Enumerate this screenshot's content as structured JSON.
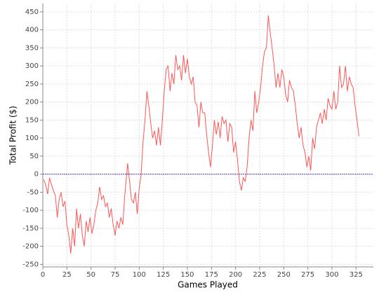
{
  "chart_data": {
    "type": "line",
    "x_label": "Games Played",
    "y_label": "Total Profit ($)",
    "x": [
      1,
      3,
      5,
      7,
      9,
      11,
      13,
      15,
      17,
      19,
      21,
      23,
      25,
      27,
      29,
      31,
      33,
      35,
      37,
      39,
      41,
      43,
      45,
      47,
      49,
      51,
      53,
      55,
      57,
      59,
      61,
      63,
      65,
      67,
      69,
      71,
      73,
      75,
      77,
      79,
      81,
      83,
      85,
      87,
      88,
      90,
      92,
      94,
      96,
      98,
      100,
      102,
      104,
      106,
      108,
      110,
      112,
      114,
      116,
      118,
      120,
      122,
      124,
      126,
      128,
      130,
      132,
      134,
      136,
      138,
      140,
      142,
      144,
      146,
      148,
      150,
      152,
      154,
      156,
      158,
      160,
      162,
      164,
      166,
      168,
      170,
      172,
      174,
      176,
      178,
      180,
      182,
      184,
      186,
      188,
      190,
      192,
      194,
      196,
      198,
      200,
      202,
      204,
      206,
      208,
      210,
      212,
      214,
      216,
      218,
      220,
      222,
      224,
      226,
      228,
      230,
      232,
      234,
      236,
      238,
      240,
      242,
      244,
      246,
      248,
      250,
      252,
      254,
      256,
      258,
      260,
      262,
      264,
      266,
      268,
      270,
      272,
      274,
      276,
      278,
      280,
      282,
      284,
      286,
      288,
      290,
      292,
      294,
      296,
      298,
      300,
      302,
      304,
      306,
      308,
      310,
      312,
      314,
      316,
      318,
      320,
      322,
      324,
      326,
      328
    ],
    "series": [
      {
        "color": "#ff5555",
        "values": [
          -15,
          -30,
          -55,
          -10,
          -30,
          -45,
          -60,
          -120,
          -70,
          -50,
          -90,
          -75,
          -140,
          -170,
          -220,
          -150,
          -200,
          -95,
          -150,
          -110,
          -170,
          -200,
          -130,
          -160,
          -120,
          -165,
          -140,
          -100,
          -80,
          -35,
          -70,
          -60,
          -90,
          -80,
          -120,
          -95,
          -140,
          -170,
          -130,
          -150,
          -120,
          -140,
          -60,
          0,
          30,
          -20,
          -70,
          -80,
          -50,
          -110,
          -40,
          0,
          90,
          150,
          230,
          190,
          140,
          100,
          120,
          80,
          130,
          80,
          150,
          230,
          290,
          300,
          230,
          280,
          250,
          330,
          290,
          300,
          260,
          330,
          280,
          320,
          270,
          250,
          270,
          200,
          190,
          130,
          200,
          170,
          170,
          110,
          60,
          20,
          80,
          150,
          110,
          145,
          100,
          160,
          140,
          150,
          90,
          140,
          130,
          60,
          90,
          40,
          -20,
          -45,
          -10,
          -20,
          20,
          100,
          150,
          120,
          230,
          170,
          200,
          240,
          300,
          340,
          350,
          440,
          390,
          350,
          300,
          240,
          280,
          240,
          290,
          270,
          220,
          200,
          260,
          240,
          230,
          190,
          140,
          100,
          130,
          80,
          60,
          20,
          50,
          10,
          100,
          70,
          130,
          150,
          170,
          140,
          180,
          150,
          210,
          190,
          180,
          230,
          180,
          200,
          300,
          240,
          250,
          300,
          230,
          270,
          250,
          240,
          190,
          150,
          105
        ]
      }
    ],
    "xlim": [
      0,
      343
    ],
    "ylim": [
      -257,
      473
    ],
    "xticks": [
      0,
      25,
      50,
      75,
      100,
      125,
      150,
      175,
      200,
      225,
      250,
      275,
      300,
      325
    ],
    "yticks": [
      -250,
      -200,
      -150,
      -100,
      -50,
      0,
      50,
      100,
      150,
      200,
      250,
      300,
      350,
      400,
      450
    ],
    "grid": true,
    "zero_line": {
      "value": 0,
      "color": "#4040c0"
    }
  }
}
